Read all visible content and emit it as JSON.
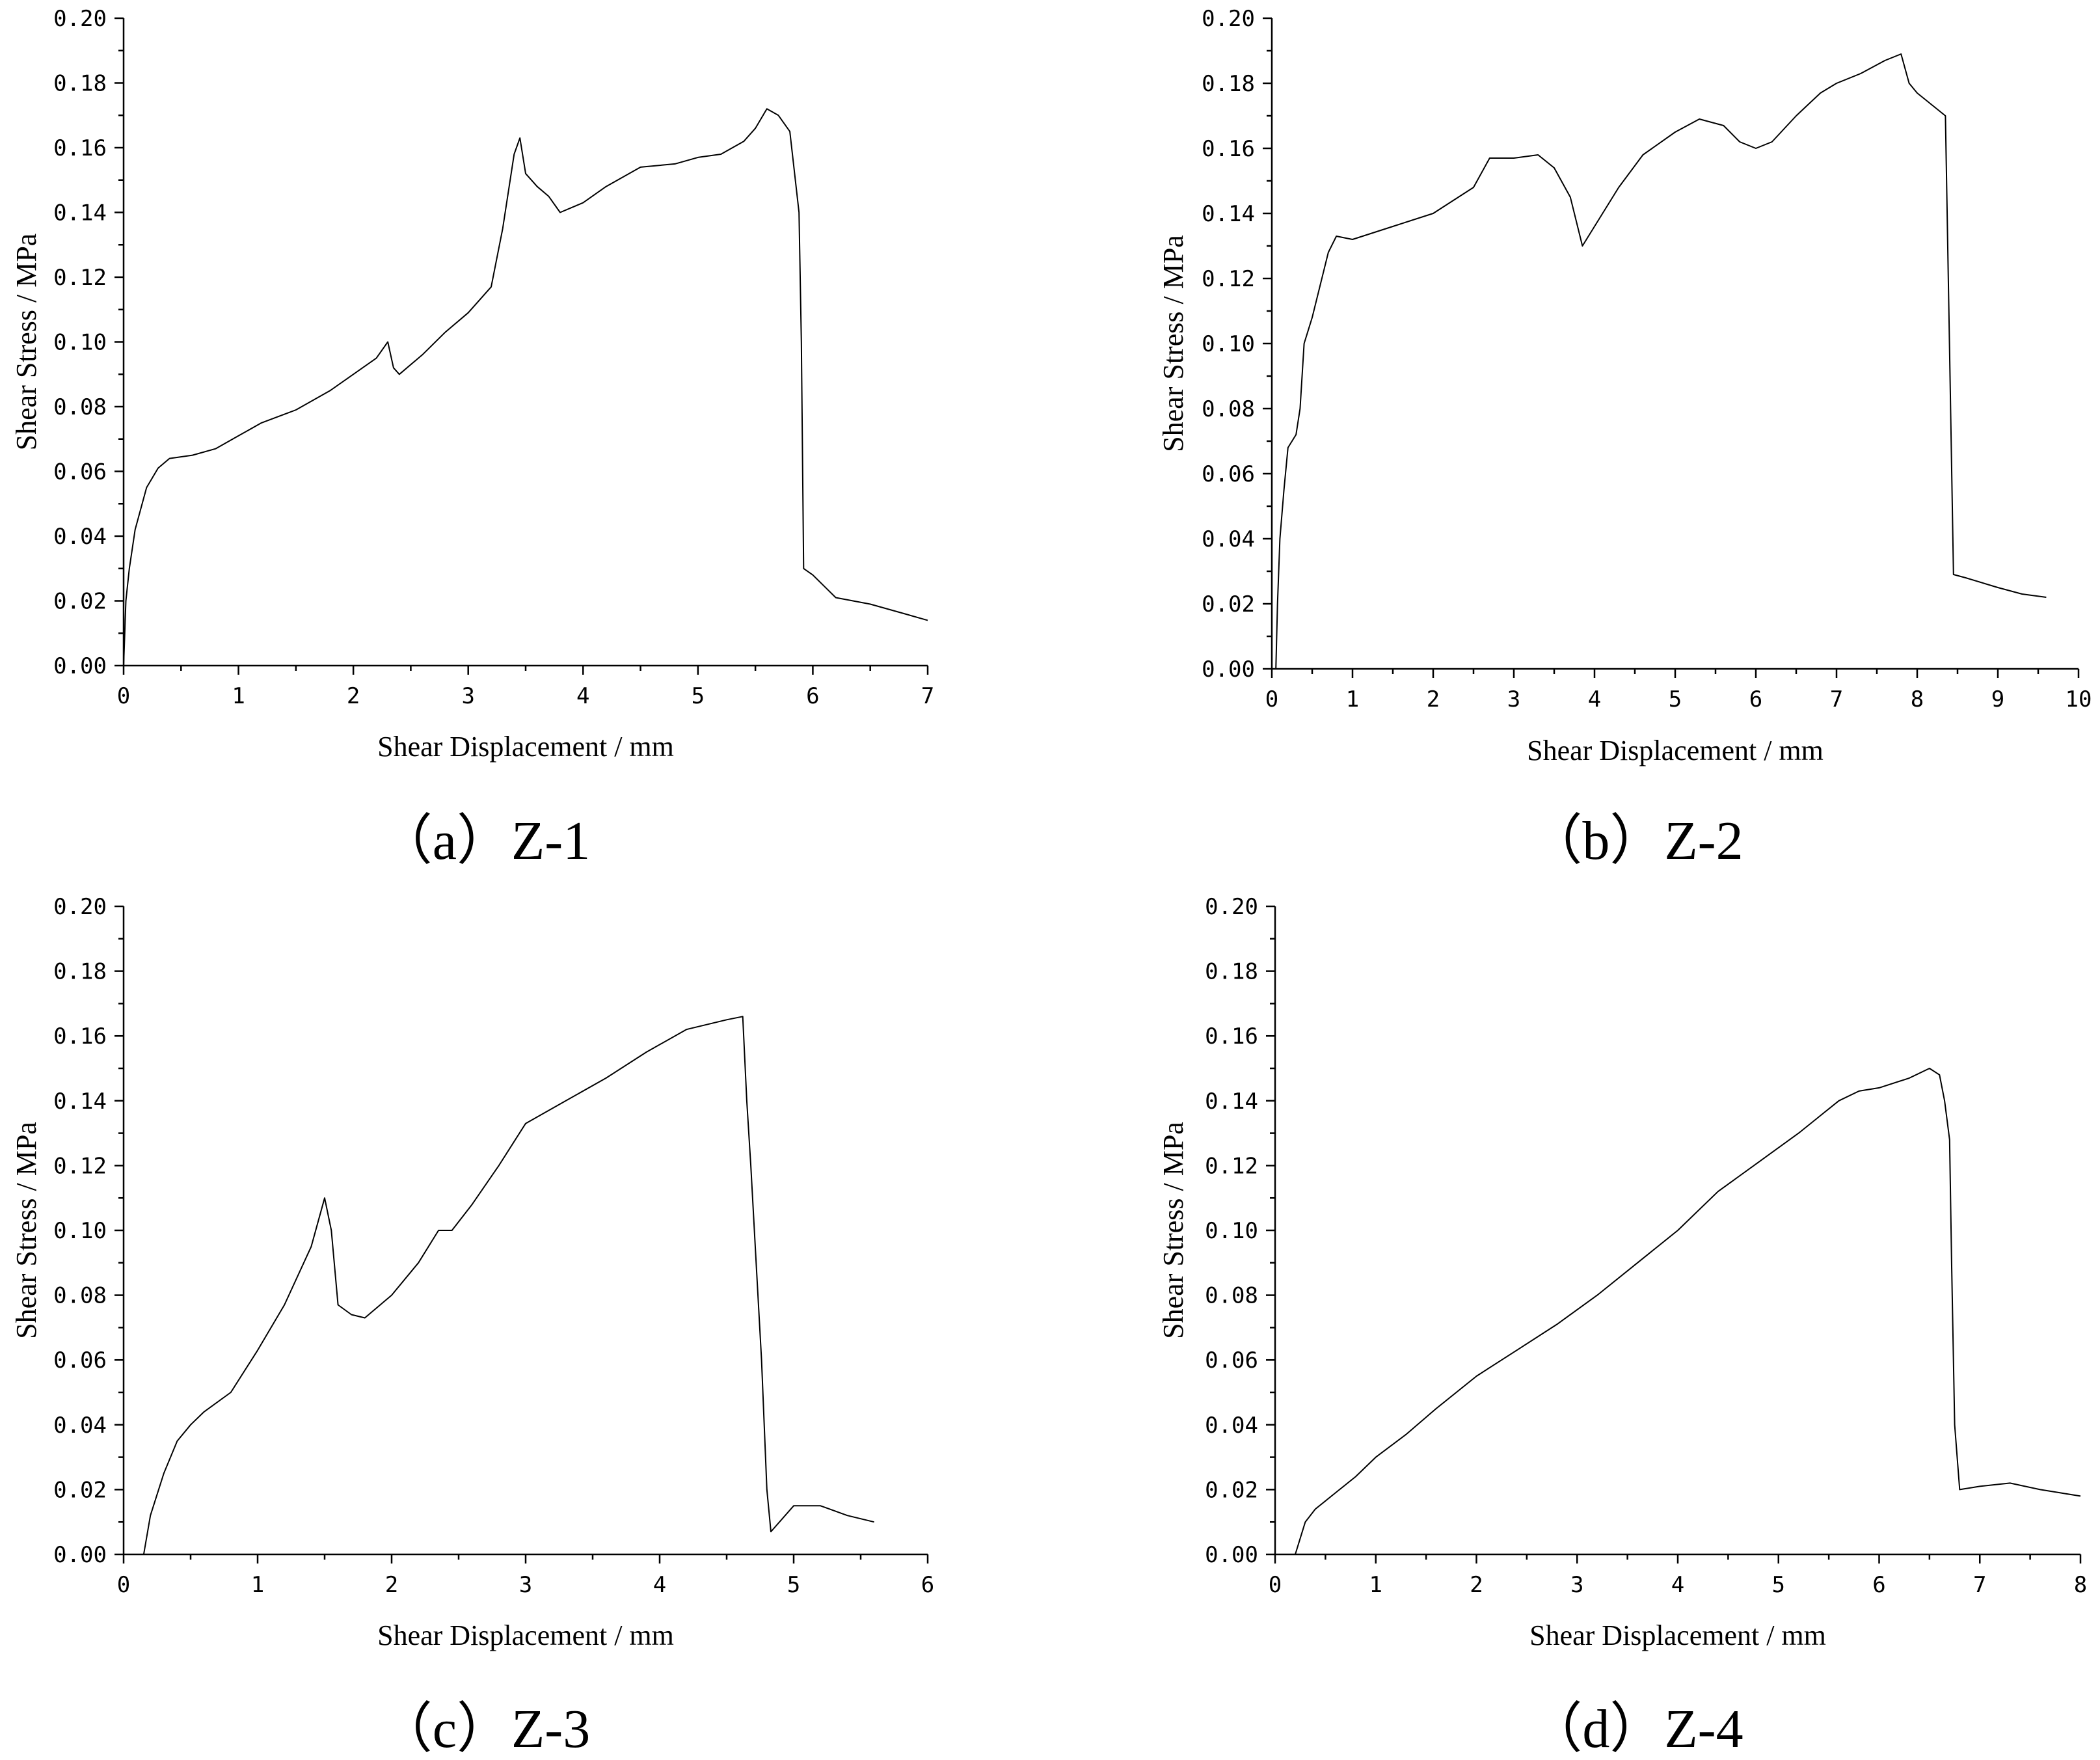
{
  "chart_data": [
    {
      "type": "line",
      "caption": "（a）Z-1",
      "xlabel": "Shear Displacement / mm",
      "ylabel": "Shear Stress / MPa",
      "xlim": [
        0,
        7
      ],
      "ylim": [
        0,
        0.2
      ],
      "x_ticks": [
        "0",
        "1",
        "2",
        "3",
        "4",
        "5",
        "6",
        "7"
      ],
      "y_ticks": [
        "0.00",
        "0.02",
        "0.04",
        "0.06",
        "0.08",
        "0.10",
        "0.12",
        "0.14",
        "0.16",
        "0.18",
        "0.20"
      ],
      "series": [
        {
          "x": [
            0,
            0.02,
            0.05,
            0.1,
            0.2,
            0.3,
            0.4,
            0.6,
            0.8,
            1.0,
            1.2,
            1.5,
            1.8,
            2.0,
            2.2,
            2.3,
            2.35,
            2.4,
            2.6,
            2.8,
            3.0,
            3.2,
            3.3,
            3.4,
            3.45,
            3.5,
            3.6,
            3.7,
            3.8,
            4.0,
            4.2,
            4.5,
            4.8,
            5.0,
            5.2,
            5.4,
            5.5,
            5.6,
            5.7,
            5.8,
            5.88,
            5.9,
            5.92,
            6.0,
            6.2,
            6.5,
            6.8,
            7.0
          ],
          "y": [
            0,
            0.02,
            0.03,
            0.042,
            0.055,
            0.061,
            0.064,
            0.065,
            0.067,
            0.071,
            0.075,
            0.079,
            0.085,
            0.09,
            0.095,
            0.1,
            0.092,
            0.09,
            0.096,
            0.103,
            0.109,
            0.117,
            0.135,
            0.158,
            0.163,
            0.152,
            0.148,
            0.145,
            0.14,
            0.143,
            0.148,
            0.154,
            0.155,
            0.157,
            0.158,
            0.162,
            0.166,
            0.172,
            0.17,
            0.165,
            0.14,
            0.1,
            0.03,
            0.028,
            0.021,
            0.019,
            0.016,
            0.014
          ]
        }
      ]
    },
    {
      "type": "line",
      "caption": "（b）Z-2",
      "xlabel": "Shear Displacement / mm",
      "ylabel": "Shear Stress / MPa",
      "xlim": [
        0,
        10
      ],
      "ylim": [
        0,
        0.2
      ],
      "x_ticks": [
        "0",
        "1",
        "2",
        "3",
        "4",
        "5",
        "6",
        "7",
        "8",
        "9",
        "10"
      ],
      "y_ticks": [
        "0.00",
        "0.02",
        "0.04",
        "0.06",
        "0.08",
        "0.10",
        "0.12",
        "0.14",
        "0.16",
        "0.18",
        "0.20"
      ],
      "series": [
        {
          "x": [
            0.05,
            0.07,
            0.1,
            0.15,
            0.2,
            0.3,
            0.35,
            0.4,
            0.5,
            0.6,
            0.7,
            0.8,
            1.0,
            1.5,
            2.0,
            2.5,
            2.7,
            3.0,
            3.3,
            3.5,
            3.7,
            3.8,
            3.85,
            4.0,
            4.3,
            4.6,
            5.0,
            5.3,
            5.6,
            5.8,
            6.0,
            6.2,
            6.5,
            6.8,
            7.0,
            7.3,
            7.6,
            7.8,
            7.9,
            8.0,
            8.2,
            8.35,
            8.4,
            8.45,
            8.6,
            9.0,
            9.3,
            9.6
          ],
          "y": [
            0,
            0.02,
            0.04,
            0.055,
            0.068,
            0.072,
            0.08,
            0.1,
            0.108,
            0.118,
            0.128,
            0.133,
            0.132,
            0.136,
            0.14,
            0.148,
            0.157,
            0.157,
            0.158,
            0.154,
            0.145,
            0.135,
            0.13,
            0.136,
            0.148,
            0.158,
            0.165,
            0.169,
            0.167,
            0.162,
            0.16,
            0.162,
            0.17,
            0.177,
            0.18,
            0.183,
            0.187,
            0.189,
            0.18,
            0.177,
            0.173,
            0.17,
            0.1,
            0.029,
            0.028,
            0.025,
            0.023,
            0.022
          ]
        }
      ]
    },
    {
      "type": "line",
      "caption": "（c）Z-3",
      "xlabel": "Shear Displacement / mm",
      "ylabel": "Shear Stress / MPa",
      "xlim": [
        0,
        6
      ],
      "ylim": [
        0,
        0.2
      ],
      "x_ticks": [
        "0",
        "1",
        "2",
        "3",
        "4",
        "5",
        "6"
      ],
      "y_ticks": [
        "0.00",
        "0.02",
        "0.04",
        "0.06",
        "0.08",
        "0.10",
        "0.12",
        "0.14",
        "0.16",
        "0.18",
        "0.20"
      ],
      "series": [
        {
          "x": [
            0.15,
            0.2,
            0.3,
            0.4,
            0.5,
            0.6,
            0.8,
            1.0,
            1.2,
            1.4,
            1.5,
            1.55,
            1.6,
            1.7,
            1.8,
            2.0,
            2.2,
            2.35,
            2.45,
            2.6,
            2.8,
            3.0,
            3.3,
            3.6,
            3.9,
            4.2,
            4.5,
            4.62,
            4.65,
            4.68,
            4.72,
            4.76,
            4.8,
            4.83,
            5.0,
            5.2,
            5.4,
            5.6
          ],
          "y": [
            0,
            0.012,
            0.025,
            0.035,
            0.04,
            0.044,
            0.05,
            0.063,
            0.077,
            0.095,
            0.11,
            0.1,
            0.077,
            0.074,
            0.073,
            0.08,
            0.09,
            0.1,
            0.1,
            0.108,
            0.12,
            0.133,
            0.14,
            0.147,
            0.155,
            0.162,
            0.165,
            0.166,
            0.14,
            0.12,
            0.09,
            0.06,
            0.02,
            0.007,
            0.015,
            0.015,
            0.012,
            0.01
          ]
        }
      ]
    },
    {
      "type": "line",
      "caption": "（d）Z-4",
      "xlabel": "Shear Displacement / mm",
      "ylabel": "Shear Stress / MPa",
      "xlim": [
        0,
        8
      ],
      "ylim": [
        0,
        0.2
      ],
      "x_ticks": [
        "0",
        "1",
        "2",
        "3",
        "4",
        "5",
        "6",
        "7",
        "8"
      ],
      "y_ticks": [
        "0.00",
        "0.02",
        "0.04",
        "0.06",
        "0.08",
        "0.10",
        "0.12",
        "0.14",
        "0.16",
        "0.18",
        "0.20"
      ],
      "series": [
        {
          "x": [
            0.2,
            0.25,
            0.3,
            0.4,
            0.6,
            0.8,
            1.0,
            1.3,
            1.6,
            2.0,
            2.4,
            2.8,
            3.2,
            3.6,
            4.0,
            4.4,
            4.8,
            5.2,
            5.6,
            5.8,
            6.0,
            6.3,
            6.5,
            6.6,
            6.65,
            6.7,
            6.72,
            6.75,
            6.8,
            7.0,
            7.3,
            7.6,
            7.8,
            8.0
          ],
          "y": [
            0,
            0.005,
            0.01,
            0.014,
            0.019,
            0.024,
            0.03,
            0.037,
            0.045,
            0.055,
            0.063,
            0.071,
            0.08,
            0.09,
            0.1,
            0.112,
            0.121,
            0.13,
            0.14,
            0.143,
            0.144,
            0.147,
            0.15,
            0.148,
            0.14,
            0.128,
            0.09,
            0.04,
            0.02,
            0.021,
            0.022,
            0.02,
            0.019,
            0.018
          ]
        }
      ]
    }
  ]
}
